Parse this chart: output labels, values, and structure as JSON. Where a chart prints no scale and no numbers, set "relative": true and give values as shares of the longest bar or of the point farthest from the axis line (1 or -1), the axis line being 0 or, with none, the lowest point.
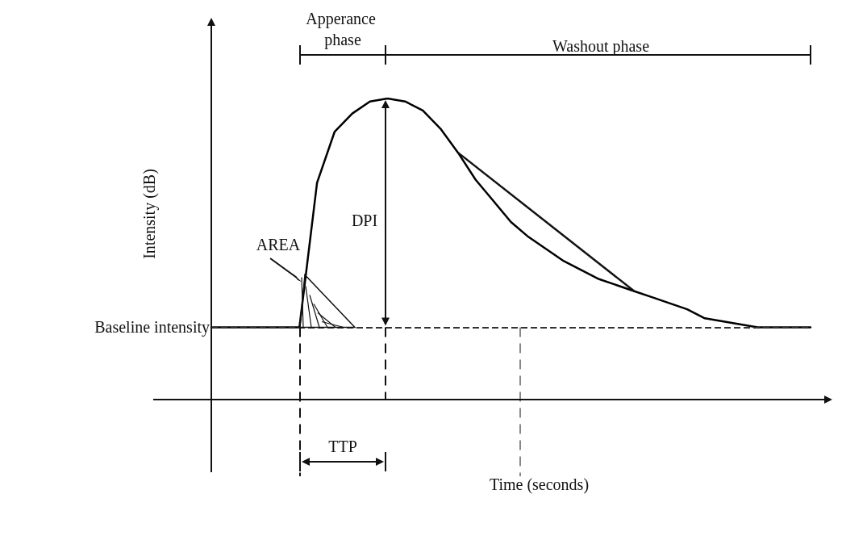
{
  "chart_data": {
    "type": "line",
    "relative": true,
    "xlabel": "Time (seconds)",
    "ylabel": "Intensity (dB)",
    "categories": [
      null,
      null,
      null,
      null,
      null,
      null,
      null,
      null,
      null,
      null,
      null,
      null,
      null,
      null,
      null,
      null,
      null,
      null,
      null,
      null,
      null,
      null,
      null,
      null,
      null,
      null,
      null,
      null,
      null,
      null,
      null,
      null,
      null,
      null,
      null
    ],
    "series": [
      {
        "color": "#000000",
        "values": [
          0.24,
          0.24,
          0.24,
          0.24,
          0.24,
          0.24,
          0.72,
          0.89,
          0.95,
          0.99,
          1,
          0.99,
          0.96,
          0.9,
          0.82,
          0.73,
          0.66,
          0.59,
          0.54,
          0.5,
          0.46,
          0.43,
          0.4,
          0.38,
          0.36,
          0.34,
          0.32,
          0.3,
          0.27,
          0.26,
          0.25,
          0.24,
          0.24,
          0.24,
          0.24
        ]
      }
    ],
    "ref_lines": [
      {
        "axis": "y",
        "value": 0.24,
        "label": "Baseline intensity",
        "line_style": "dashed",
        "color": "#333333"
      }
    ],
    "annotations": [
      "Apperance phase",
      "Washout phase",
      "DPI",
      "AREA",
      "TTP"
    ],
    "marker": "none",
    "line_style": "solid"
  }
}
